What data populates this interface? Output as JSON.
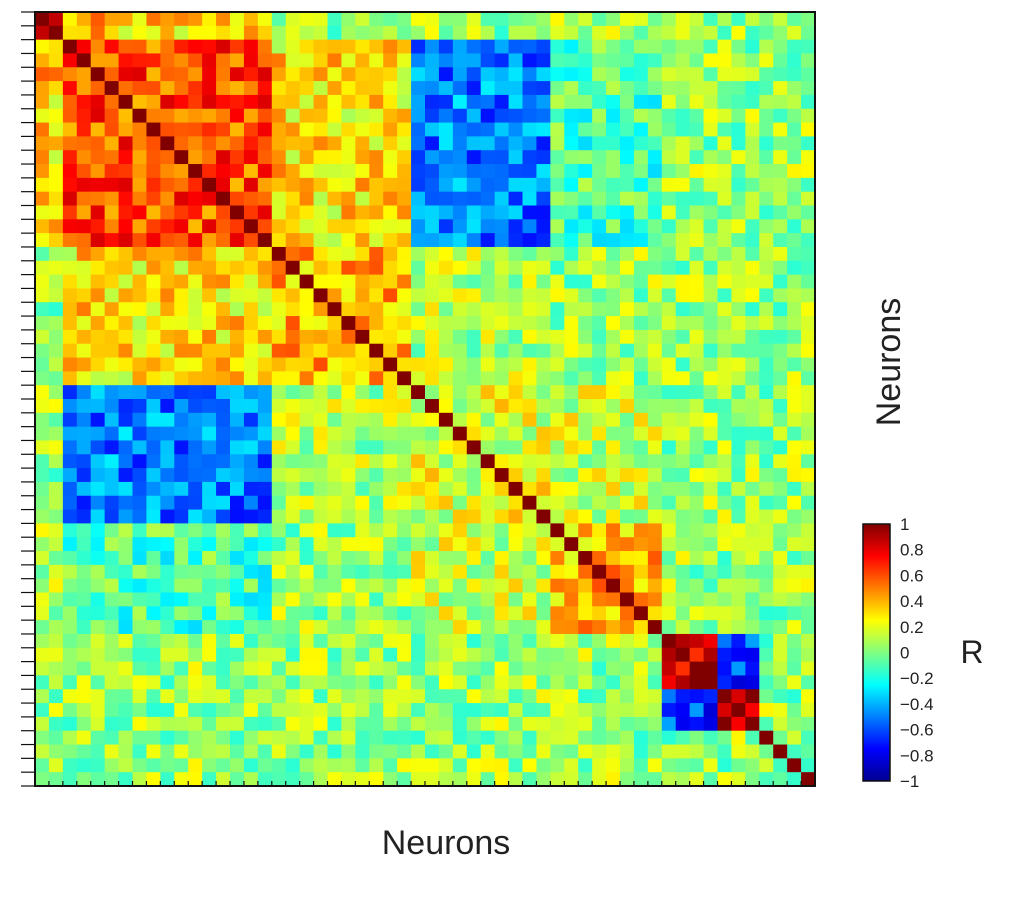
{
  "chart_data": {
    "type": "heatmap",
    "n": 56,
    "xlabel": "Neurons",
    "ylabel": "Neurons",
    "colorbar": {
      "label": "R",
      "range": [
        -1,
        1
      ],
      "ticks": [
        1,
        0.8,
        0.6,
        0.4,
        0.2,
        0,
        -0.2,
        -0.4,
        -0.6,
        -0.8,
        -1
      ],
      "tick_labels": [
        "1",
        "0.8",
        "0.6",
        "0.4",
        "0.2",
        "0",
        "−0.2",
        "−0.4",
        "−0.6",
        "−0.8",
        "−1"
      ],
      "colormap": "jet"
    },
    "clusters": [
      {
        "range": [
          0,
          2
        ],
        "within_r": 0.8
      },
      {
        "range": [
          2,
          17
        ],
        "within_r": 0.6
      },
      {
        "range": [
          17,
          27
        ],
        "within_r": 0.4
      },
      {
        "range": [
          27,
          37
        ],
        "within_r": 0.2
      },
      {
        "range": [
          37,
          45
        ],
        "within_r": 0.4
      },
      {
        "range": [
          45,
          49
        ],
        "within_r": 0.85
      },
      {
        "range": [
          49,
          52
        ],
        "within_r": 0.85
      },
      {
        "range": [
          52,
          56
        ],
        "within_r": 0.05
      }
    ],
    "between_cluster_r": [
      {
        "a": 1,
        "b": 2,
        "r": 0.3
      },
      {
        "a": 1,
        "b": 3,
        "r": -0.5
      },
      {
        "a": 2,
        "b": 3,
        "r": 0.1
      },
      {
        "a": 1,
        "b": 4,
        "r": -0.1
      },
      {
        "a": 2,
        "b": 4,
        "r": 0.05
      },
      {
        "a": 3,
        "b": 4,
        "r": 0.15
      },
      {
        "a": 5,
        "b": 6,
        "r": -0.65
      },
      {
        "a": 0,
        "b": 1,
        "r": 0.35
      }
    ],
    "background_r": 0.05,
    "diagonal_r": 1
  }
}
